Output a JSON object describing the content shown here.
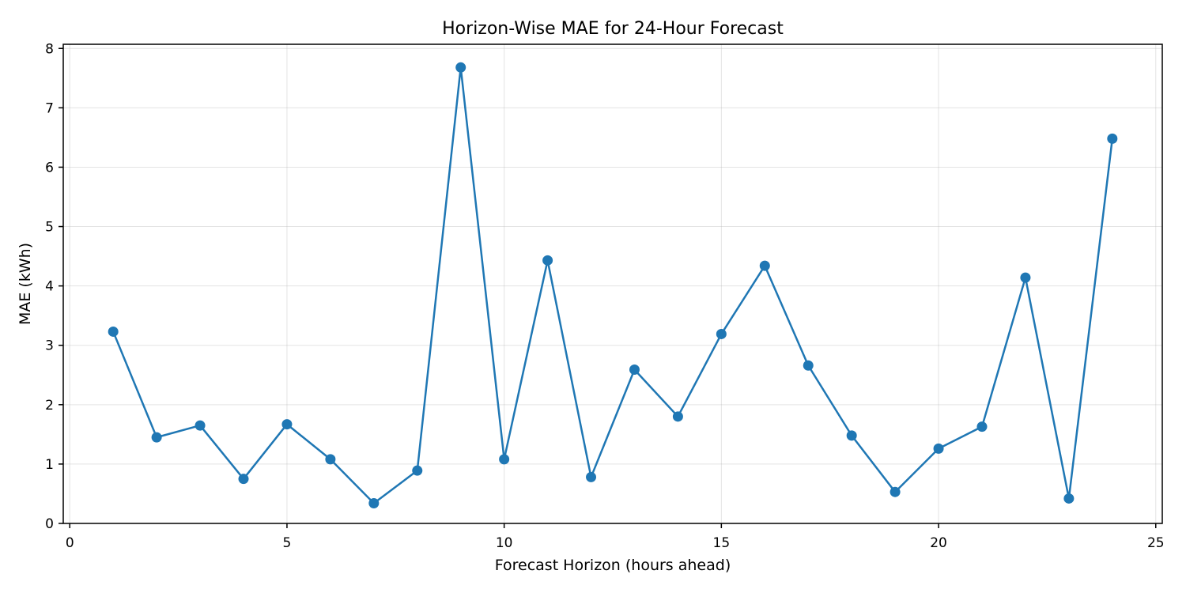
{
  "chart_data": {
    "type": "line",
    "title": "Horizon-Wise MAE for 24-Hour Forecast",
    "xlabel": "Forecast Horizon (hours ahead)",
    "ylabel": "MAE (kWh)",
    "xlim": [
      -0.15,
      25.15
    ],
    "ylim": [
      0,
      8.07
    ],
    "xticks": [
      0,
      5,
      10,
      15,
      20,
      25
    ],
    "yticks": [
      0,
      1,
      2,
      3,
      4,
      5,
      6,
      7,
      8
    ],
    "grid": true,
    "series": [
      {
        "color": "#1f77b4",
        "marker": "circle",
        "x": [
          1,
          2,
          3,
          4,
          5,
          6,
          7,
          8,
          9,
          10,
          11,
          12,
          13,
          14,
          15,
          16,
          17,
          18,
          19,
          20,
          21,
          22,
          23,
          24
        ],
        "y": [
          3.23,
          1.45,
          1.65,
          0.75,
          1.67,
          1.08,
          0.34,
          0.89,
          7.68,
          1.08,
          4.43,
          0.78,
          2.59,
          1.8,
          3.19,
          4.34,
          2.66,
          1.48,
          0.53,
          1.26,
          1.63,
          4.14,
          0.42,
          6.48
        ]
      }
    ]
  }
}
